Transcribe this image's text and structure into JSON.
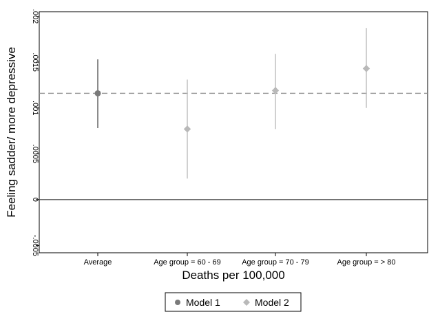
{
  "chart_data": {
    "type": "scatter",
    "title": "",
    "xlabel": "Deaths per 100,000",
    "ylabel": "Feeling sadder/ more depressive",
    "categories": [
      "Average",
      "Age group = 60 - 69",
      "Age group = 70 - 79",
      "Age group = > 80"
    ],
    "ylim": [
      -0.00058,
      0.00205
    ],
    "yticks": [
      -0.0005,
      0,
      0.0005,
      0.001,
      0.0015,
      0.002
    ],
    "ytick_labels": [
      "-.0005",
      "0",
      ".0005",
      ".001",
      ".0015",
      ".002"
    ],
    "reference_lines": [
      {
        "y": 0,
        "style": "solid"
      },
      {
        "y": 0.00116,
        "style": "dashed"
      }
    ],
    "grid": false,
    "legend_position": "bottom-center",
    "series": [
      {
        "name": "Model 1",
        "marker": "circle",
        "color": "#7a7a7a",
        "points": [
          {
            "category": "Average",
            "y": 0.00116,
            "ci_low": 0.00078,
            "ci_high": 0.00153
          }
        ]
      },
      {
        "name": "Model 2",
        "marker": "diamond",
        "color": "#b9b9b9",
        "points": [
          {
            "category": "Age group = 60 - 69",
            "y": 0.00077,
            "ci_low": 0.00023,
            "ci_high": 0.00131
          },
          {
            "category": "Age group = 70 - 79",
            "y": 0.00119,
            "ci_low": 0.00077,
            "ci_high": 0.00159
          },
          {
            "category": "Age group = > 80",
            "y": 0.00143,
            "ci_low": 0.001,
            "ci_high": 0.00187
          }
        ]
      }
    ]
  }
}
